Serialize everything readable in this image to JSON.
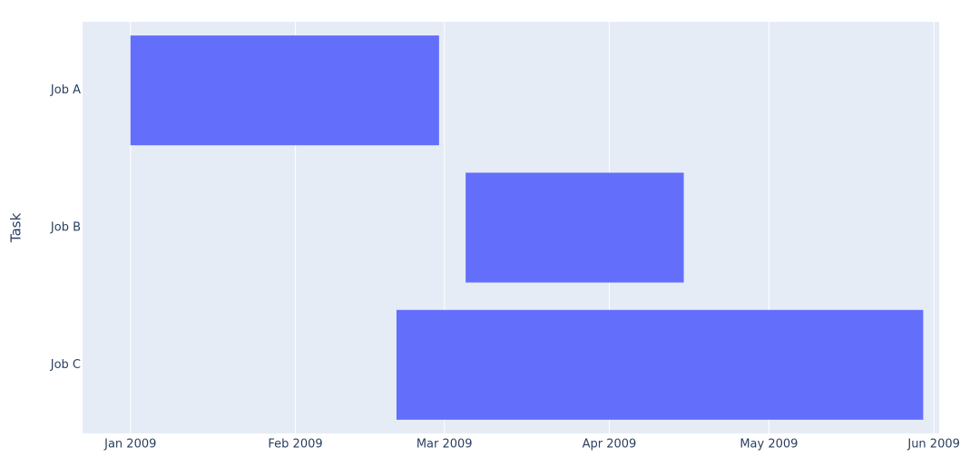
{
  "chart_data": {
    "type": "timeline",
    "y_label": "Task",
    "categories": [
      "Job A",
      "Job B",
      "Job C"
    ],
    "start": [
      "2009-01-01",
      "2009-03-05",
      "2009-02-20"
    ],
    "end": [
      "2009-02-28",
      "2009-04-15",
      "2009-05-30"
    ],
    "color": "#636efa",
    "xlim": [
      "2008-12-23",
      "2009-06-02"
    ],
    "xticks": [
      {
        "value": "2009-01-01",
        "label": "Jan 2009"
      },
      {
        "value": "2009-02-01",
        "label": "Feb 2009"
      },
      {
        "value": "2009-03-01",
        "label": "Mar 2009"
      },
      {
        "value": "2009-04-01",
        "label": "Apr 2009"
      },
      {
        "value": "2009-05-01",
        "label": "May 2009"
      },
      {
        "value": "2009-06-01",
        "label": "Jun 2009"
      }
    ],
    "grid": true
  }
}
